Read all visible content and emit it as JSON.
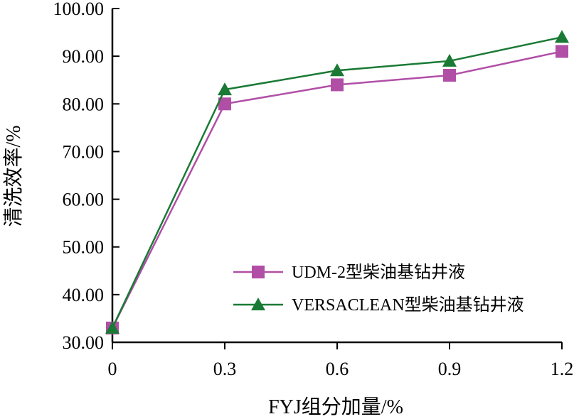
{
  "chart_data": {
    "type": "line",
    "xlabel": "FYJ组分加量/%",
    "ylabel": "清洗效率/%",
    "x": [
      0,
      0.3,
      0.6,
      0.9,
      1.2
    ],
    "x_tick_labels": [
      "0",
      "0.3",
      "0.6",
      "0.9",
      "1.2"
    ],
    "ylim": [
      30,
      100
    ],
    "y_ticks": [
      30,
      40,
      50,
      60,
      70,
      80,
      90,
      100
    ],
    "y_tick_labels": [
      "30.00",
      "40.00",
      "50.00",
      "60.00",
      "70.00",
      "80.00",
      "90.00",
      "100.00"
    ],
    "grid": false,
    "legend_position": "bottom-right",
    "series": [
      {
        "name": "UDM-2型柴油基钻井液",
        "values": [
          33,
          80,
          84,
          86,
          91
        ],
        "color": "#b14fa6",
        "marker": "square"
      },
      {
        "name": "VERSACLEAN型柴油基钻井液",
        "values": [
          33,
          83,
          87,
          89,
          94
        ],
        "color": "#1a7a35",
        "marker": "triangle"
      }
    ]
  }
}
